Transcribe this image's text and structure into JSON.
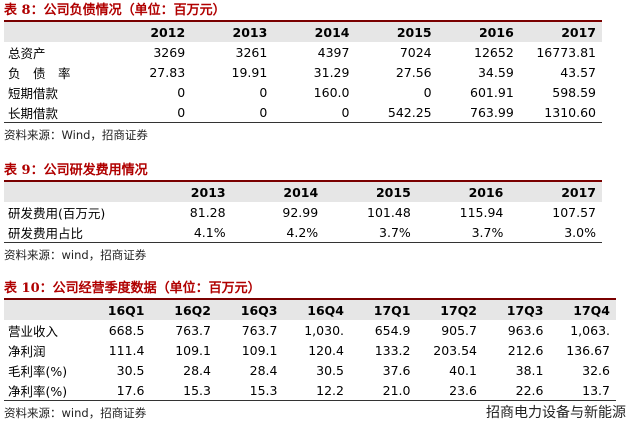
{
  "table8": {
    "title": "表 8：公司负债情况（单位：百万元）",
    "header": [
      "2012",
      "2013",
      "2014",
      "2015",
      "2016",
      "2017"
    ],
    "rows": [
      [
        "总资产",
        "3269",
        "3261",
        "4397",
        "7024",
        "12652",
        "16773.81"
      ],
      [
        "负　债　率",
        "27.83",
        "19.91",
        "31.29",
        "27.56",
        "34.59",
        "43.57"
      ],
      [
        "短期借款",
        "0",
        "0",
        "160.0",
        "0",
        "601.91",
        "598.59"
      ],
      [
        "长期借款",
        "0",
        "0",
        "0",
        "542.25",
        "763.99",
        "1310.60"
      ]
    ],
    "source": "资料来源：Wind，招商证券"
  },
  "table9": {
    "title": "表 9：公司研发费用情况",
    "header": [
      "2013",
      "2014",
      "2015",
      "2016",
      "2017"
    ],
    "rows": [
      [
        "研发费用(百万元)",
        "81.28",
        "92.99",
        "101.48",
        "115.94",
        "107.57"
      ],
      [
        "研发费用占比",
        "4.1%",
        "4.2%",
        "3.7%",
        "3.7%",
        "3.0%"
      ]
    ],
    "source": "资料来源：wind，招商证券"
  },
  "table10": {
    "title": "表 10：公司经营季度数据（单位：百万元）",
    "header": [
      "16Q1",
      "16Q2",
      "16Q3",
      "16Q4",
      "17Q1",
      "17Q2",
      "17Q3",
      "17Q4"
    ],
    "rows": [
      [
        "营业收入",
        "668.5",
        "763.7",
        "763.7",
        "1,030.",
        "654.9",
        "905.7",
        "963.6",
        "1,063."
      ],
      [
        "净利润",
        "111.4",
        "109.1",
        "109.1",
        "120.4",
        "133.2",
        "203.54",
        "212.6",
        "136.67"
      ],
      [
        "毛利率(%)",
        "30.5",
        "28.4",
        "28.4",
        "30.5",
        "37.6",
        "40.1",
        "38.1",
        "32.6"
      ],
      [
        "净利率(%)",
        "17.6",
        "15.3",
        "15.3",
        "12.2",
        "21.0",
        "23.6",
        "22.6",
        "13.7"
      ]
    ],
    "source": "资料来源：wind，招商证券"
  },
  "watermark": "招商电力设备与新能源"
}
